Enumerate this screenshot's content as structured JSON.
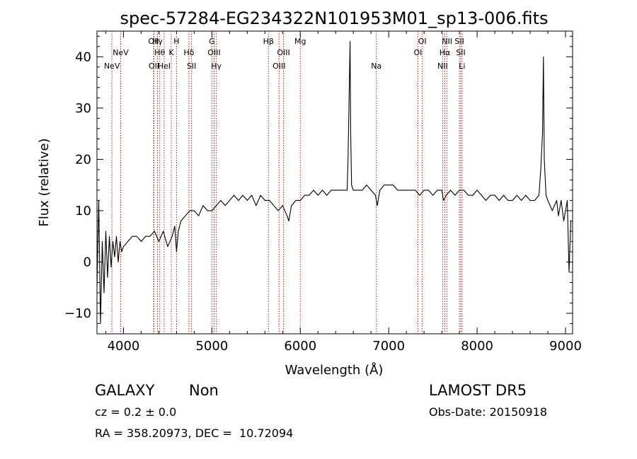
{
  "chart_data": {
    "type": "line",
    "title": "spec-57284-EG234322N101953M01_sp13-006.fits",
    "xlabel": "Wavelength (Å)",
    "ylabel": "Flux (relative)",
    "xlim": [
      3700,
      9080
    ],
    "ylim": [
      -14,
      45
    ],
    "xticks": [
      4000,
      5000,
      6000,
      7000,
      8000,
      9000
    ],
    "yticks": [
      -10,
      0,
      10,
      20,
      30,
      40
    ],
    "grid": false,
    "legend": "none",
    "line_color": "#000000",
    "marker_color": "#b22222",
    "series": [
      {
        "x": [
          3700,
          3720,
          3740,
          3760,
          3780,
          3800,
          3820,
          3840,
          3860,
          3880,
          3900,
          3920,
          3940,
          3960,
          3980,
          4000,
          4050,
          4100,
          4150,
          4200,
          4250,
          4300,
          4350,
          4400,
          4450,
          4500,
          4550,
          4580,
          4600,
          4620,
          4650,
          4700,
          4750,
          4800,
          4850,
          4900,
          4950,
          5000,
          5050,
          5100,
          5150,
          5200,
          5250,
          5300,
          5350,
          5400,
          5450,
          5500,
          5550,
          5600,
          5650,
          5700,
          5750,
          5800,
          5850,
          5870,
          5900,
          5950,
          6000,
          6050,
          6100,
          6150,
          6200,
          6250,
          6300,
          6350,
          6400,
          6450,
          6500,
          6530,
          6540,
          6550,
          6563,
          6570,
          6580,
          6600,
          6650,
          6700,
          6750,
          6800,
          6850,
          6870,
          6900,
          6950,
          7000,
          7050,
          7100,
          7150,
          7200,
          7250,
          7300,
          7350,
          7400,
          7450,
          7500,
          7550,
          7600,
          7620,
          7650,
          7700,
          7750,
          7800,
          7850,
          7900,
          7950,
          8000,
          8050,
          8100,
          8150,
          8200,
          8250,
          8300,
          8350,
          8400,
          8450,
          8500,
          8550,
          8600,
          8650,
          8700,
          8720,
          8740,
          8750,
          8760,
          8780,
          8800,
          8850,
          8900,
          8920,
          8950,
          8980,
          9000,
          9020,
          9040,
          9060
        ],
        "values": [
          -5,
          12,
          -12,
          4,
          -6,
          6,
          -3,
          5,
          -1,
          4,
          1,
          5,
          0,
          4,
          2,
          3,
          4,
          5,
          5,
          4,
          5,
          5,
          6,
          4,
          6,
          3,
          5,
          7,
          2,
          6,
          8,
          9,
          10,
          10,
          9,
          11,
          10,
          10,
          11,
          12,
          11,
          12,
          13,
          12,
          13,
          12,
          13,
          11,
          13,
          12,
          12,
          11,
          10,
          11,
          9,
          8,
          11,
          12,
          12,
          13,
          13,
          14,
          13,
          14,
          13,
          14,
          14,
          14,
          14,
          14,
          20,
          30,
          43,
          25,
          15,
          14,
          14,
          14,
          15,
          14,
          13,
          11,
          14,
          15,
          15,
          15,
          14,
          14,
          14,
          14,
          14,
          13,
          14,
          14,
          13,
          14,
          14,
          12,
          13,
          14,
          13,
          14,
          14,
          13,
          13,
          14,
          13,
          12,
          13,
          13,
          12,
          13,
          12,
          12,
          13,
          12,
          13,
          12,
          12,
          13,
          18,
          25,
          40,
          20,
          13,
          12,
          10,
          12,
          9,
          12,
          8,
          10,
          12,
          -2,
          8
        ]
      }
    ],
    "lines": [
      {
        "x": 3869,
        "label": "NeV",
        "row": 3
      },
      {
        "x": 3968,
        "label": "NeV",
        "row": 2
      },
      {
        "x": 4340,
        "label": "OII",
        "row": 1
      },
      {
        "x": 4345,
        "label": "OII",
        "row": 3
      },
      {
        "x": 4385,
        "label": "Hγ",
        "row": 1
      },
      {
        "x": 4410,
        "label": "Hθ",
        "row": 2
      },
      {
        "x": 4460,
        "label": "HeI",
        "row": 3
      },
      {
        "x": 4540,
        "label": "K",
        "row": 2
      },
      {
        "x": 4600,
        "label": "H",
        "row": 1
      },
      {
        "x": 4740,
        "label": "Hδ",
        "row": 2
      },
      {
        "x": 4770,
        "label": "SII",
        "row": 3
      },
      {
        "x": 5000,
        "label": "G",
        "row": 1
      },
      {
        "x": 5025,
        "label": "OIII",
        "row": 2
      },
      {
        "x": 5050,
        "label": "Hγ",
        "row": 3
      },
      {
        "x": 5640,
        "label": "Hβ",
        "row": 1
      },
      {
        "x": 5760,
        "label": "OIII",
        "row": 3
      },
      {
        "x": 5810,
        "label": "OIII",
        "row": 2
      },
      {
        "x": 6000,
        "label": "Mg",
        "row": 1
      },
      {
        "x": 6860,
        "label": "Na",
        "row": 3
      },
      {
        "x": 7330,
        "label": "OI",
        "row": 2
      },
      {
        "x": 7380,
        "label": "OI",
        "row": 1
      },
      {
        "x": 7610,
        "label": "NII",
        "row": 3
      },
      {
        "x": 7635,
        "label": "Hα",
        "row": 2
      },
      {
        "x": 7660,
        "label": "NII",
        "row": 1
      },
      {
        "x": 7800,
        "label": "SII",
        "row": 1
      },
      {
        "x": 7815,
        "label": "SII",
        "row": 2
      },
      {
        "x": 7830,
        "label": "Li",
        "row": 3
      }
    ]
  },
  "info": {
    "object_class": "GALAXY",
    "subclass": "Non",
    "redshift": "cz = 0.2 ± 0.0",
    "coords": "RA = 358.20973, DEC =  10.72094",
    "survey": "LAMOST DR5",
    "obs_date": "Obs-Date: 20150918"
  }
}
